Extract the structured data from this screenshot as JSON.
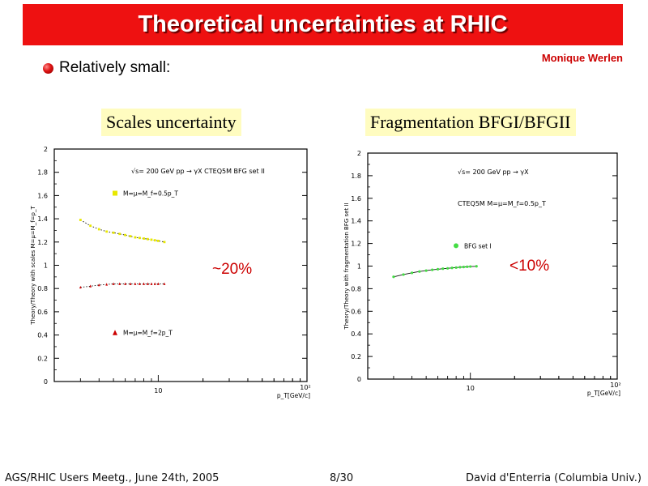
{
  "slide": {
    "title": "Theoretical uncertainties at RHIC",
    "author": "Monique Werlen",
    "bullet": "Relatively small:",
    "footer_left": "AGS/RHIC Users Meetg., June 24th, 2005",
    "footer_center": "8/30",
    "footer_right": "David d'Enterria (Columbia Univ.)",
    "colors": {
      "title_bar": "#ee1111",
      "accent_text": "#cc0000",
      "caption_bg": "#fffcc0"
    }
  },
  "chart_data": [
    {
      "type": "scatter",
      "caption": "Scales uncertainty",
      "annotation": "~20%",
      "header": "√s= 200 GeV pp → γX  CTEQ5M  BFG set II",
      "ylabel": "Theory/Theory with scales M=μ=M_f=p_T",
      "xlabel": "p_T[GeV/c]",
      "xscale": "log",
      "xlim": [
        2,
        100
      ],
      "ylim": [
        0,
        2
      ],
      "yticks": [
        "0",
        "0.2",
        "0.4",
        "0.6",
        "0.8",
        "1",
        "1.2",
        "1.4",
        "1.6",
        "1.8",
        "2"
      ],
      "xticks": [
        "10",
        "10²"
      ],
      "legend": [
        {
          "label": "M=μ=M_f=0.5p_T",
          "marker": "square",
          "color": "#e8e800"
        },
        {
          "label": "M=μ=M_f=2p_T",
          "marker": "triangle",
          "color": "#cc0000"
        }
      ],
      "series": [
        {
          "marker": "square",
          "color": "#e8e800",
          "x": [
            3,
            3.5,
            4,
            4.5,
            5,
            5.5,
            6,
            6.5,
            7,
            7.5,
            8,
            8.5,
            9,
            9.5,
            10,
            11
          ],
          "y": [
            1.39,
            1.34,
            1.31,
            1.29,
            1.28,
            1.27,
            1.26,
            1.25,
            1.24,
            1.235,
            1.23,
            1.225,
            1.22,
            1.215,
            1.21,
            1.2
          ]
        },
        {
          "marker": "triangle",
          "color": "#cc0000",
          "x": [
            3,
            3.5,
            4,
            4.5,
            5,
            5.5,
            6,
            6.5,
            7,
            7.5,
            8,
            8.5,
            9,
            9.5,
            10,
            11
          ],
          "y": [
            0.81,
            0.82,
            0.83,
            0.835,
            0.84,
            0.84,
            0.84,
            0.84,
            0.84,
            0.84,
            0.84,
            0.84,
            0.84,
            0.84,
            0.84,
            0.84
          ]
        }
      ]
    },
    {
      "type": "scatter",
      "caption": "Fragmentation BFGI/BFGII",
      "annotation": "<10%",
      "header": "√s= 200 GeV pp → γX",
      "subheader": "CTEQ5M  M=μ=M_f=0.5p_T",
      "ylabel": "Theory/Theory with fragmentation BFG set II",
      "xlabel": "p_T[GeV/c]",
      "xscale": "log",
      "xlim": [
        2,
        100
      ],
      "ylim": [
        0,
        2
      ],
      "yticks": [
        "0",
        "0.2",
        "0.4",
        "0.6",
        "0.8",
        "1",
        "1.2",
        "1.4",
        "1.6",
        "1.8",
        "2"
      ],
      "xticks": [
        "10",
        "10²"
      ],
      "legend": [
        {
          "label": "BFG set I",
          "marker": "circle",
          "color": "#44dd44"
        }
      ],
      "series": [
        {
          "marker": "circle",
          "color": "#44dd44",
          "x": [
            3,
            3.5,
            4,
            4.5,
            5,
            5.5,
            6,
            6.5,
            7,
            7.5,
            8,
            8.5,
            9,
            9.5,
            10,
            11
          ],
          "y": [
            0.905,
            0.925,
            0.94,
            0.952,
            0.96,
            0.967,
            0.972,
            0.977,
            0.98,
            0.984,
            0.987,
            0.99,
            0.992,
            0.994,
            0.996,
            0.998
          ]
        }
      ]
    }
  ]
}
